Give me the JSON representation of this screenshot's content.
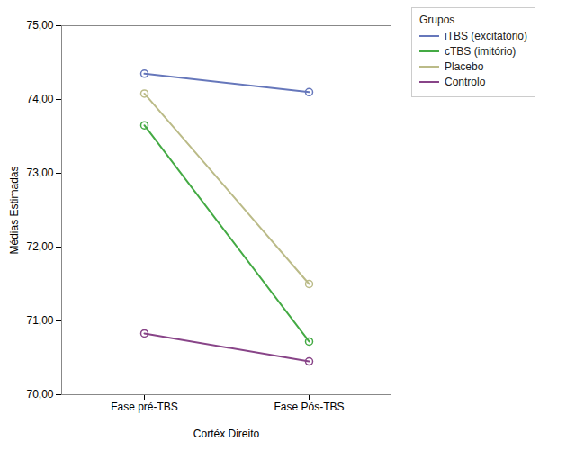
{
  "chart_data": {
    "type": "line",
    "categories": [
      "Fase pré-TBS",
      "Fase Pós-TBS"
    ],
    "series": [
      {
        "name": "iTBS (excitatório)",
        "color": "#6677bb",
        "values": [
          74.35,
          74.1
        ]
      },
      {
        "name": "cTBS (imitório)",
        "color": "#44aa44",
        "values": [
          73.65,
          70.72
        ]
      },
      {
        "name": "Placebo",
        "color": "#bbbb88",
        "values": [
          74.08,
          71.5
        ]
      },
      {
        "name": "Controlo",
        "color": "#884488",
        "values": [
          70.83,
          70.45
        ]
      }
    ],
    "xlabel": "Cortéx Direito",
    "ylabel": "Médias Estimadas",
    "ylim": [
      70.0,
      75.0
    ],
    "yticks": [
      {
        "value": 70.0,
        "label": "70,00"
      },
      {
        "value": 71.0,
        "label": "71,00"
      },
      {
        "value": 72.0,
        "label": "72,00"
      },
      {
        "value": 73.0,
        "label": "73,00"
      },
      {
        "value": 74.0,
        "label": "74,00"
      },
      {
        "value": 75.0,
        "label": "75,00"
      }
    ],
    "legend": "upper right",
    "legend_title": "Grupos",
    "grid": false,
    "marker": "circle",
    "line_style": "solid"
  }
}
